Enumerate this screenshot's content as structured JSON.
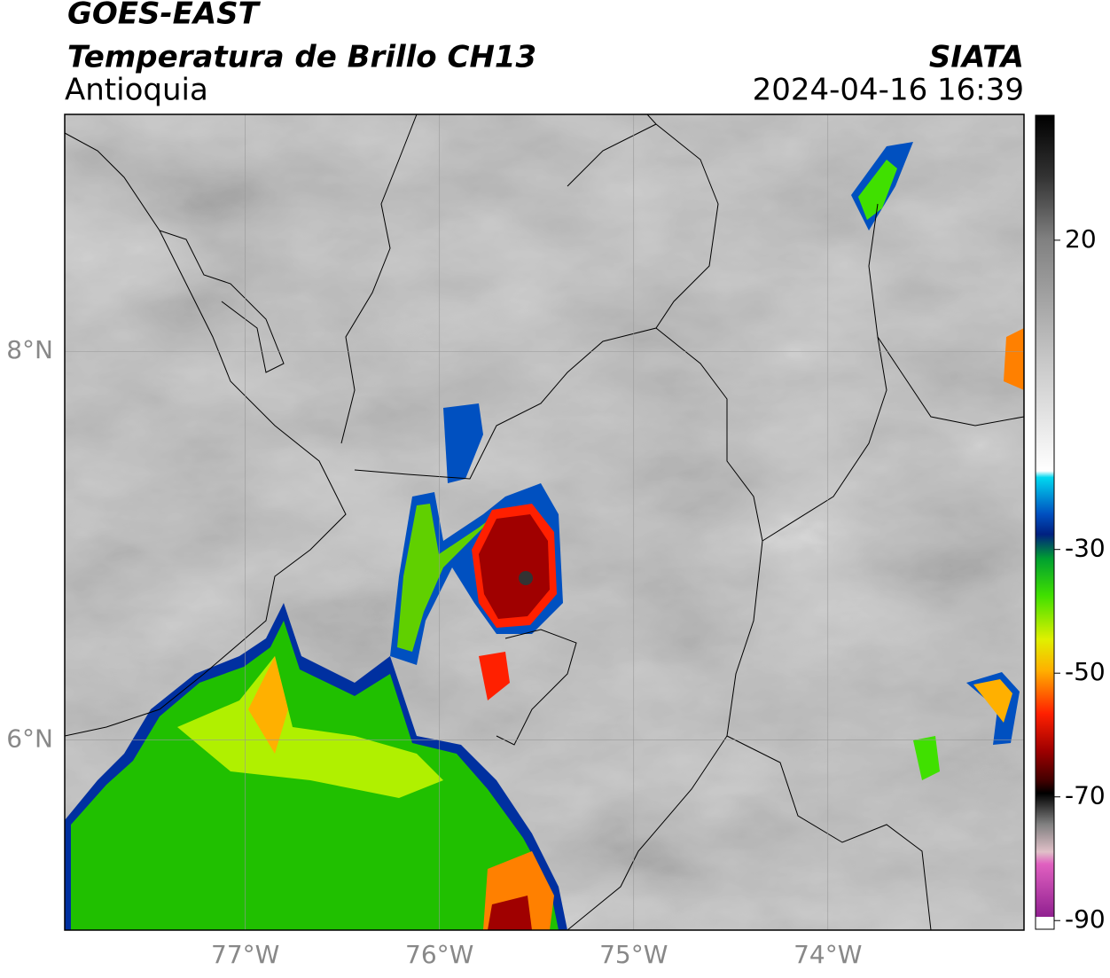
{
  "header": {
    "satellite": "GOES-EAST",
    "product": "Temperatura de Brillo CH13",
    "region": "Antioquia",
    "agency": "SIATA",
    "datetime": "2024-04-16 16:39"
  },
  "map": {
    "xlim": [
      -77.93,
      -72.99
    ],
    "ylim": [
      5.02,
      9.22
    ],
    "xticks": [
      {
        "value": -77,
        "label": "77°W"
      },
      {
        "value": -76,
        "label": "76°W"
      },
      {
        "value": -75,
        "label": "75°W"
      },
      {
        "value": -74,
        "label": "74°W"
      }
    ],
    "yticks": [
      {
        "value": 8,
        "label": "8°N"
      },
      {
        "value": 6,
        "label": "6°N"
      }
    ],
    "grid": true
  },
  "colorbar": {
    "lim": [
      -91.4,
      40.2
    ],
    "ticks": [
      20,
      -30,
      -50,
      -70,
      -90
    ]
  }
}
